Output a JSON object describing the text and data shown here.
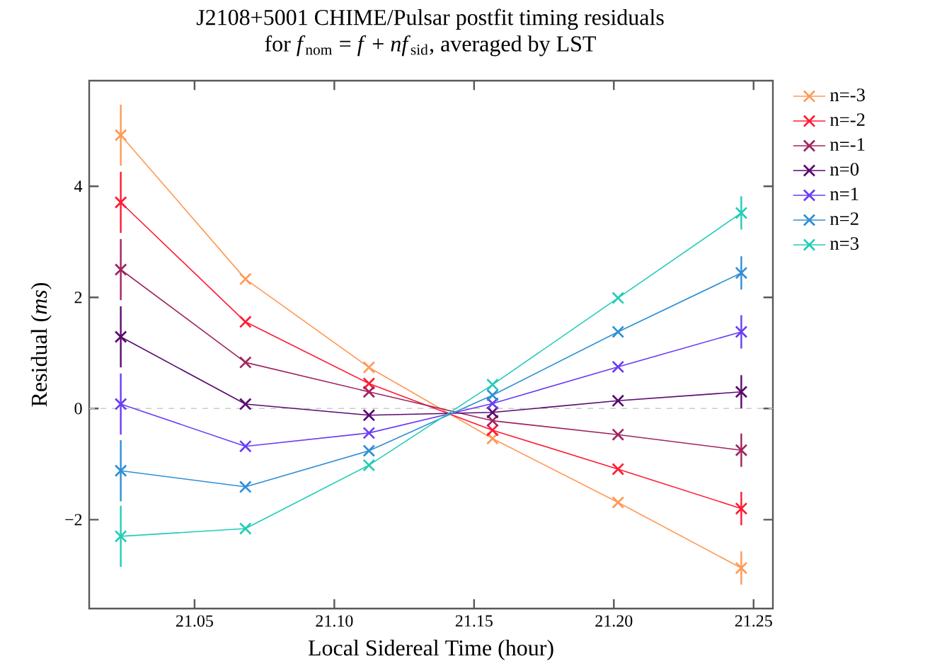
{
  "chart_data": {
    "type": "line",
    "title": "J2108+5001 CHIME/Pulsar postfit timing residuals",
    "subtitle": "for *f*$_{nom}$ = *f* + *nf*$_{sid}$, averaged by LST",
    "xlabel": "Local Sidereal Time (hour)",
    "ylabel": "Residual (*ms*)",
    "x": [
      21.0236,
      21.0682,
      21.1124,
      21.1566,
      21.2015,
      21.2456
    ],
    "series": [
      {
        "name": "n=-3",
        "color": "#ff9955",
        "values": [
          4.92,
          2.33,
          0.74,
          -0.54,
          -1.69,
          -2.87
        ],
        "errors": [
          0.55,
          null,
          null,
          null,
          null,
          0.3
        ]
      },
      {
        "name": "n=-2",
        "color": "#ff1a33",
        "values": [
          3.71,
          1.56,
          0.45,
          -0.39,
          -1.09,
          -1.8
        ],
        "errors": [
          0.55,
          null,
          null,
          null,
          null,
          0.3
        ]
      },
      {
        "name": "n=-1",
        "color": "#a0245f",
        "values": [
          2.5,
          0.83,
          0.3,
          -0.22,
          -0.47,
          -0.75
        ],
        "errors": [
          0.55,
          null,
          null,
          null,
          null,
          0.3
        ]
      },
      {
        "name": "n=0",
        "color": "#5a0a6e",
        "values": [
          1.29,
          0.08,
          -0.12,
          -0.07,
          0.14,
          0.3
        ],
        "errors": [
          0.55,
          null,
          null,
          null,
          null,
          0.3
        ]
      },
      {
        "name": "n=1",
        "color": "#6a3cf5",
        "values": [
          0.08,
          -0.68,
          -0.44,
          0.09,
          0.75,
          1.38
        ],
        "errors": [
          0.55,
          null,
          null,
          null,
          null,
          0.3
        ]
      },
      {
        "name": "n=2",
        "color": "#2e8fd6",
        "values": [
          -1.12,
          -1.41,
          -0.76,
          0.24,
          1.38,
          2.44
        ],
        "errors": [
          0.55,
          null,
          null,
          null,
          null,
          0.3
        ]
      },
      {
        "name": "n=3",
        "color": "#22ccb8",
        "values": [
          -2.3,
          -2.16,
          -1.02,
          0.43,
          1.99,
          3.52
        ],
        "errors": [
          0.55,
          null,
          null,
          null,
          null,
          0.3
        ]
      }
    ],
    "xlim": [
      21.0123,
      21.2569
    ],
    "ylim": [
      -3.6,
      5.9
    ],
    "xticks": [
      21.05,
      {
        "value": 21.1,
        "label": "21.10"
      },
      21.15,
      {
        "value": 21.2,
        "label": "21.20"
      },
      21.25
    ],
    "yticks": [
      {
        "value": -2,
        "label": "−2"
      },
      0,
      2,
      4
    ],
    "ref_lines": [
      {
        "axis": "y",
        "value": 0,
        "color": "#cccccc",
        "line_style": "dashed"
      }
    ],
    "grid": false,
    "legend": "top right",
    "marker": "cross",
    "line_style": "solid"
  }
}
